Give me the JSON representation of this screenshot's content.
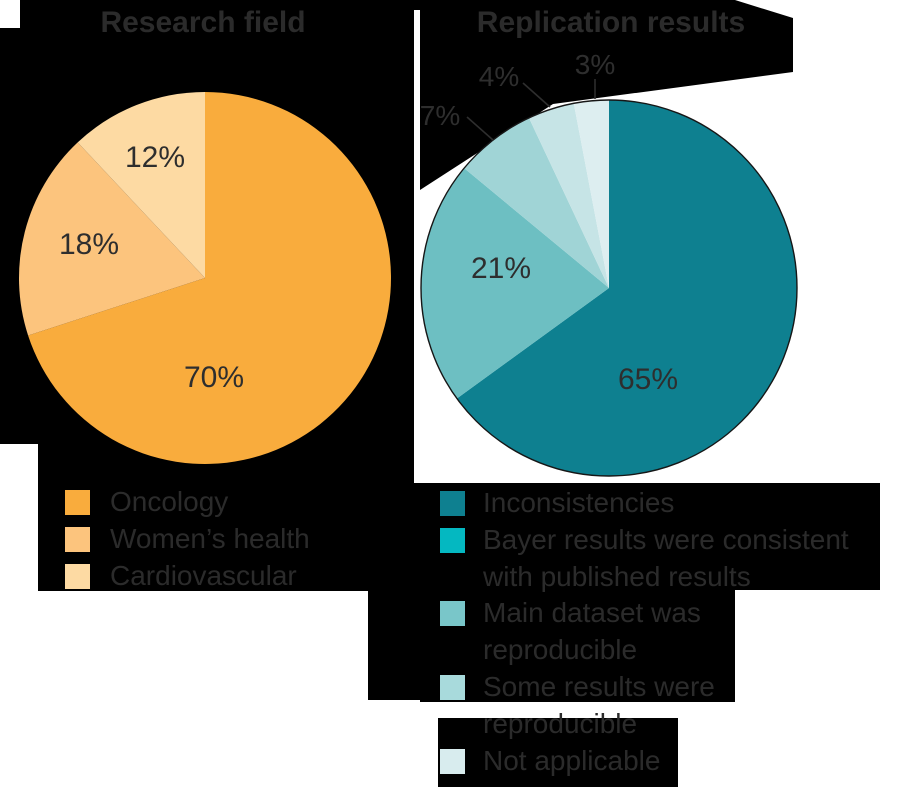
{
  "titles": {
    "left": "Research field",
    "right": "Replication results"
  },
  "text_color": "#2E2E2E",
  "background_color": "#000000",
  "panel_white": "#FFFFFF",
  "chart_data": [
    {
      "type": "pie",
      "title": "Research field",
      "start_angle": "12-oclock-clockwise",
      "categories": [
        "Oncology",
        "Women’s health",
        "Cardiovascular"
      ],
      "values": [
        70,
        18,
        12
      ],
      "pct_labels": [
        "70%",
        "18%",
        "12%"
      ],
      "slice_colors": [
        "#F9AC3D",
        "#FCC47D",
        "#FDDAA3"
      ],
      "legend_position": "bottom-left"
    },
    {
      "type": "pie",
      "title": "Replication results",
      "start_angle": "12-oclock-clockwise",
      "categories": [
        "Inconsistencies",
        "Bayer results were consistent with published results",
        "Main dataset was reproducible",
        "Some results were reproducible",
        "Not applicable"
      ],
      "values": [
        65,
        21,
        7,
        4,
        3
      ],
      "pct_labels": [
        "65%",
        "21%",
        "7%",
        "4%",
        "3%"
      ],
      "slice_colors": [
        "#0E8090",
        "#6DBFC2",
        "#A0D4D6",
        "#C6E4E6",
        "#DDEEF0"
      ],
      "legend_position": "bottom-right"
    }
  ],
  "legends": {
    "left": {
      "items": [
        {
          "label_lines": [
            "Oncology"
          ],
          "color": "#F9AC3D"
        },
        {
          "label_lines": [
            "Women’s health"
          ],
          "color": "#FCC47D"
        },
        {
          "label_lines": [
            "Cardiovascular"
          ],
          "color": "#FDDAA3"
        }
      ]
    },
    "right": {
      "items": [
        {
          "label_lines": [
            "Inconsistencies"
          ],
          "color": "#0E8090"
        },
        {
          "label_lines": [
            "Bayer results were consistent",
            "with published results"
          ],
          "color": "#04B8C1"
        },
        {
          "label_lines": [
            "Main dataset was",
            "reproducible"
          ],
          "color": "#79C6C9"
        },
        {
          "label_lines": [
            "Some results were",
            "reproducible"
          ],
          "color": "#A8DADC"
        },
        {
          "label_lines": [
            "Not applicable"
          ],
          "color": "#D8ECEE"
        }
      ]
    }
  }
}
